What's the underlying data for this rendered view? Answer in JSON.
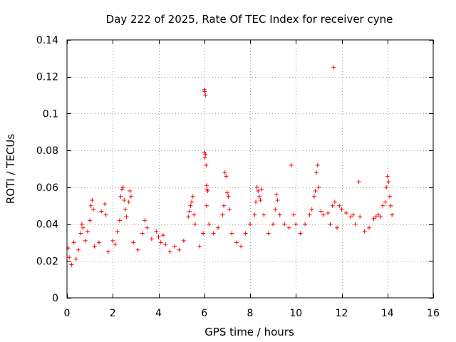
{
  "chart_data": {
    "type": "scatter",
    "title": "Day 222 of 2025, Rate Of TEC Index for receiver cyne",
    "xlabel": "GPS time / hours",
    "ylabel": "ROTI / TECUs",
    "xlim": [
      0,
      16
    ],
    "ylim": [
      0,
      0.14
    ],
    "x_ticks": [
      0,
      2,
      4,
      6,
      8,
      10,
      12,
      14,
      16
    ],
    "x_tick_labels": [
      "0",
      "2",
      "4",
      "6",
      "8",
      "10",
      "12",
      "14",
      "16"
    ],
    "y_ticks": [
      0,
      0.02,
      0.04,
      0.06,
      0.08,
      0.1,
      0.12,
      0.14
    ],
    "y_tick_labels": [
      "0",
      "0.02",
      "0.04",
      "0.06",
      "0.08",
      "0.1",
      "0.12",
      "0.14"
    ],
    "grid": true,
    "marker": "+",
    "series": [
      {
        "name": "ROTI",
        "color": "#ff0000",
        "points": [
          [
            0.05,
            0.027
          ],
          [
            0.1,
            0.022
          ],
          [
            0.2,
            0.018
          ],
          [
            0.3,
            0.03
          ],
          [
            0.4,
            0.021
          ],
          [
            0.5,
            0.026
          ],
          [
            0.6,
            0.035
          ],
          [
            0.65,
            0.04
          ],
          [
            0.7,
            0.038
          ],
          [
            0.8,
            0.031
          ],
          [
            0.9,
            0.036
          ],
          [
            1.0,
            0.042
          ],
          [
            1.05,
            0.05
          ],
          [
            1.1,
            0.053
          ],
          [
            1.15,
            0.048
          ],
          [
            1.2,
            0.028
          ],
          [
            1.4,
            0.03
          ],
          [
            1.5,
            0.047
          ],
          [
            1.65,
            0.051
          ],
          [
            1.7,
            0.045
          ],
          [
            1.8,
            0.025
          ],
          [
            2.0,
            0.031
          ],
          [
            2.1,
            0.029
          ],
          [
            2.2,
            0.036
          ],
          [
            2.3,
            0.042
          ],
          [
            2.35,
            0.055
          ],
          [
            2.4,
            0.059
          ],
          [
            2.45,
            0.06
          ],
          [
            2.5,
            0.053
          ],
          [
            2.55,
            0.048
          ],
          [
            2.6,
            0.044
          ],
          [
            2.7,
            0.052
          ],
          [
            2.75,
            0.058
          ],
          [
            2.8,
            0.055
          ],
          [
            2.9,
            0.03
          ],
          [
            3.1,
            0.026
          ],
          [
            3.3,
            0.035
          ],
          [
            3.4,
            0.042
          ],
          [
            3.5,
            0.038
          ],
          [
            3.7,
            0.032
          ],
          [
            3.9,
            0.036
          ],
          [
            4.0,
            0.033
          ],
          [
            4.1,
            0.03
          ],
          [
            4.2,
            0.034
          ],
          [
            4.3,
            0.029
          ],
          [
            4.5,
            0.025
          ],
          [
            4.7,
            0.028
          ],
          [
            4.9,
            0.026
          ],
          [
            5.1,
            0.031
          ],
          [
            5.3,
            0.044
          ],
          [
            5.35,
            0.047
          ],
          [
            5.4,
            0.05
          ],
          [
            5.45,
            0.052
          ],
          [
            5.5,
            0.055
          ],
          [
            5.55,
            0.045
          ],
          [
            5.6,
            0.04
          ],
          [
            5.8,
            0.028
          ],
          [
            5.95,
            0.035
          ],
          [
            6.0,
            0.113
          ],
          [
            6.02,
            0.112
          ],
          [
            6.05,
            0.11
          ],
          [
            6.0,
            0.079
          ],
          [
            6.05,
            0.078
          ],
          [
            6.03,
            0.076
          ],
          [
            6.08,
            0.072
          ],
          [
            6.1,
            0.061
          ],
          [
            6.12,
            0.059
          ],
          [
            6.15,
            0.058
          ],
          [
            6.1,
            0.05
          ],
          [
            6.2,
            0.04
          ],
          [
            6.4,
            0.035
          ],
          [
            6.6,
            0.038
          ],
          [
            6.8,
            0.045
          ],
          [
            6.85,
            0.05
          ],
          [
            6.9,
            0.068
          ],
          [
            6.95,
            0.066
          ],
          [
            7.0,
            0.057
          ],
          [
            7.05,
            0.055
          ],
          [
            7.1,
            0.048
          ],
          [
            7.2,
            0.035
          ],
          [
            7.4,
            0.03
          ],
          [
            7.6,
            0.028
          ],
          [
            7.8,
            0.035
          ],
          [
            8.0,
            0.04
          ],
          [
            8.2,
            0.045
          ],
          [
            8.25,
            0.052
          ],
          [
            8.3,
            0.06
          ],
          [
            8.35,
            0.058
          ],
          [
            8.4,
            0.055
          ],
          [
            8.45,
            0.053
          ],
          [
            8.5,
            0.059
          ],
          [
            8.6,
            0.045
          ],
          [
            8.8,
            0.035
          ],
          [
            9.0,
            0.04
          ],
          [
            9.1,
            0.048
          ],
          [
            9.15,
            0.056
          ],
          [
            9.2,
            0.053
          ],
          [
            9.3,
            0.045
          ],
          [
            9.5,
            0.04
          ],
          [
            9.7,
            0.038
          ],
          [
            9.8,
            0.072
          ],
          [
            9.9,
            0.045
          ],
          [
            10.0,
            0.04
          ],
          [
            10.2,
            0.035
          ],
          [
            10.4,
            0.04
          ],
          [
            10.6,
            0.045
          ],
          [
            10.7,
            0.048
          ],
          [
            10.8,
            0.055
          ],
          [
            10.85,
            0.058
          ],
          [
            10.9,
            0.068
          ],
          [
            10.95,
            0.072
          ],
          [
            11.0,
            0.06
          ],
          [
            11.1,
            0.047
          ],
          [
            11.2,
            0.045
          ],
          [
            11.4,
            0.046
          ],
          [
            11.5,
            0.04
          ],
          [
            11.6,
            0.05
          ],
          [
            11.65,
            0.125
          ],
          [
            11.7,
            0.052
          ],
          [
            11.8,
            0.038
          ],
          [
            11.9,
            0.05
          ],
          [
            12.0,
            0.048
          ],
          [
            12.2,
            0.046
          ],
          [
            12.4,
            0.044
          ],
          [
            12.5,
            0.045
          ],
          [
            12.6,
            0.04
          ],
          [
            12.75,
            0.063
          ],
          [
            12.8,
            0.044
          ],
          [
            13.0,
            0.036
          ],
          [
            13.2,
            0.038
          ],
          [
            13.4,
            0.043
          ],
          [
            13.5,
            0.044
          ],
          [
            13.6,
            0.045
          ],
          [
            13.7,
            0.044
          ],
          [
            13.8,
            0.05
          ],
          [
            13.9,
            0.052
          ],
          [
            13.95,
            0.06
          ],
          [
            14.0,
            0.066
          ],
          [
            14.05,
            0.063
          ],
          [
            14.1,
            0.055
          ],
          [
            14.15,
            0.05
          ],
          [
            14.2,
            0.045
          ]
        ]
      }
    ]
  }
}
